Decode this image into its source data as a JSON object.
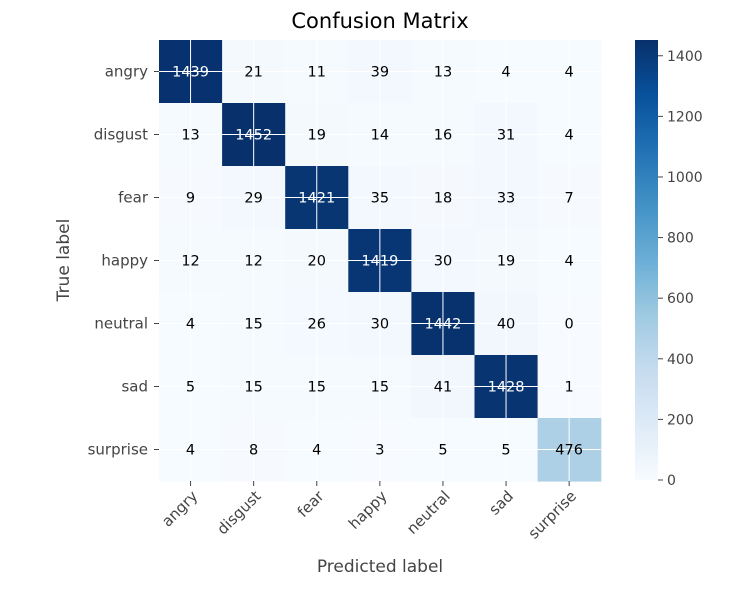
{
  "chart_data": {
    "type": "heatmap",
    "title": "Confusion Matrix",
    "xlabel": "Predicted label",
    "ylabel": "True label",
    "x_categories": [
      "angry",
      "disgust",
      "fear",
      "happy",
      "neutral",
      "sad",
      "surprise"
    ],
    "y_categories": [
      "angry",
      "disgust",
      "fear",
      "happy",
      "neutral",
      "sad",
      "surprise"
    ],
    "matrix": [
      [
        1439,
        21,
        11,
        39,
        13,
        4,
        4
      ],
      [
        13,
        1452,
        19,
        14,
        16,
        31,
        4
      ],
      [
        9,
        29,
        1421,
        35,
        18,
        33,
        7
      ],
      [
        12,
        12,
        20,
        1419,
        30,
        19,
        4
      ],
      [
        4,
        15,
        26,
        30,
        1442,
        40,
        0
      ],
      [
        5,
        15,
        15,
        15,
        41,
        1428,
        1
      ],
      [
        4,
        8,
        4,
        3,
        5,
        5,
        476
      ]
    ],
    "colormap": "Blues",
    "colors": {
      "low": "#f7fbff",
      "high": "#08306b",
      "text_dark": "#000000",
      "text_light": "#ffffff",
      "grid": "#ffffff"
    },
    "vmin": 0,
    "vmax": 1452,
    "colorbar_ticks": [
      0,
      200,
      400,
      600,
      800,
      1000,
      1200,
      1400
    ],
    "grid": true
  }
}
